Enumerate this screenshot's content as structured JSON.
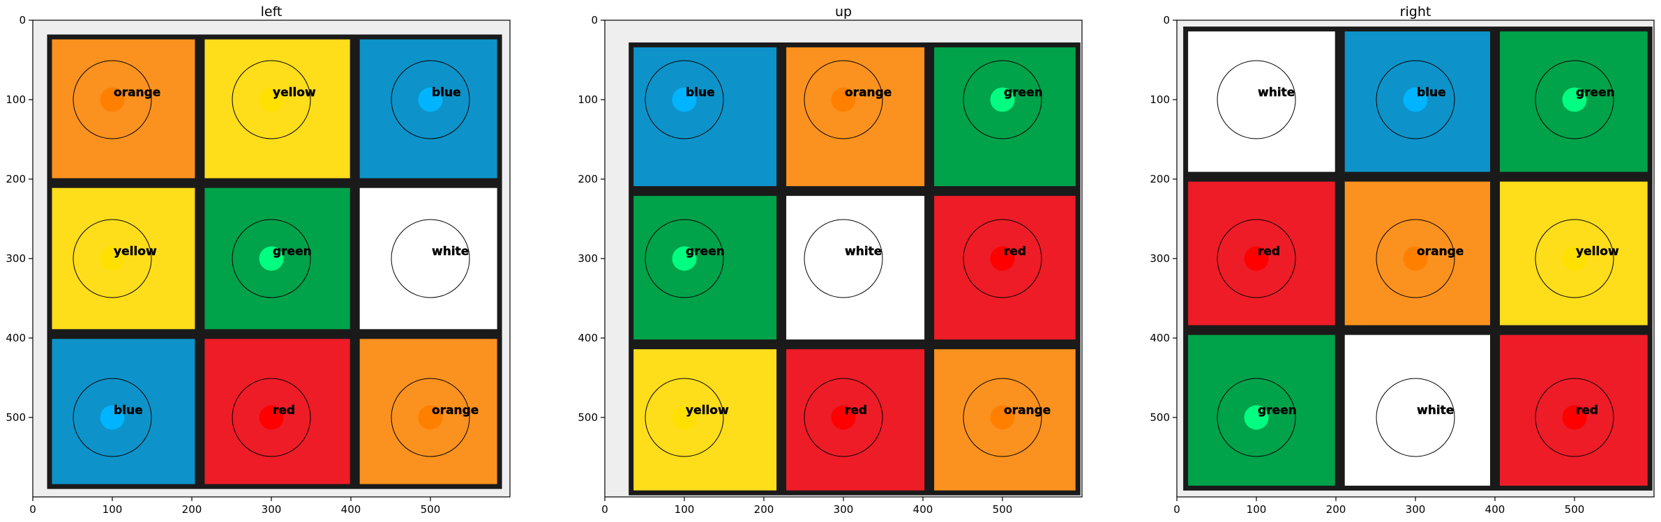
{
  "chart_data": [
    {
      "type": "heatmap",
      "title": "left",
      "xlim": [
        0,
        600
      ],
      "ylim": [
        600,
        0
      ],
      "xticks": [
        0,
        100,
        200,
        300,
        400,
        500
      ],
      "yticks": [
        0,
        100,
        200,
        300,
        400,
        500
      ],
      "grid": false,
      "cells": [
        {
          "row": 0,
          "col": 0,
          "label": "orange",
          "center": [
            100,
            100
          ]
        },
        {
          "row": 0,
          "col": 1,
          "label": "yellow",
          "center": [
            300,
            100
          ]
        },
        {
          "row": 0,
          "col": 2,
          "label": "blue",
          "center": [
            500,
            100
          ]
        },
        {
          "row": 1,
          "col": 0,
          "label": "yellow",
          "center": [
            100,
            300
          ]
        },
        {
          "row": 1,
          "col": 1,
          "label": "green",
          "center": [
            300,
            300
          ]
        },
        {
          "row": 1,
          "col": 2,
          "label": "white",
          "center": [
            500,
            300
          ]
        },
        {
          "row": 2,
          "col": 0,
          "label": "blue",
          "center": [
            100,
            500
          ]
        },
        {
          "row": 2,
          "col": 1,
          "label": "red",
          "center": [
            300,
            500
          ]
        },
        {
          "row": 2,
          "col": 2,
          "label": "orange",
          "center": [
            500,
            500
          ]
        }
      ]
    },
    {
      "type": "heatmap",
      "title": "up",
      "xlim": [
        0,
        600
      ],
      "ylim": [
        600,
        0
      ],
      "xticks": [
        0,
        100,
        200,
        300,
        400,
        500
      ],
      "yticks": [
        0,
        100,
        200,
        300,
        400,
        500
      ],
      "grid": false,
      "cells": [
        {
          "row": 0,
          "col": 0,
          "label": "blue",
          "center": [
            100,
            100
          ]
        },
        {
          "row": 0,
          "col": 1,
          "label": "orange",
          "center": [
            300,
            100
          ]
        },
        {
          "row": 0,
          "col": 2,
          "label": "green",
          "center": [
            500,
            100
          ]
        },
        {
          "row": 1,
          "col": 0,
          "label": "green",
          "center": [
            100,
            300
          ]
        },
        {
          "row": 1,
          "col": 1,
          "label": "white",
          "center": [
            300,
            300
          ]
        },
        {
          "row": 1,
          "col": 2,
          "label": "red",
          "center": [
            500,
            300
          ]
        },
        {
          "row": 2,
          "col": 0,
          "label": "yellow",
          "center": [
            100,
            500
          ]
        },
        {
          "row": 2,
          "col": 1,
          "label": "red",
          "center": [
            300,
            500
          ]
        },
        {
          "row": 2,
          "col": 2,
          "label": "orange",
          "center": [
            500,
            500
          ]
        }
      ]
    },
    {
      "type": "heatmap",
      "title": "right",
      "xlim": [
        0,
        600
      ],
      "ylim": [
        600,
        0
      ],
      "xticks": [
        0,
        100,
        200,
        300,
        400,
        500
      ],
      "yticks": [
        0,
        100,
        200,
        300,
        400,
        500
      ],
      "grid": false,
      "cells": [
        {
          "row": 0,
          "col": 0,
          "label": "white",
          "center": [
            100,
            100
          ]
        },
        {
          "row": 0,
          "col": 1,
          "label": "blue",
          "center": [
            300,
            100
          ]
        },
        {
          "row": 0,
          "col": 2,
          "label": "green",
          "center": [
            500,
            100
          ]
        },
        {
          "row": 1,
          "col": 0,
          "label": "red",
          "center": [
            100,
            300
          ]
        },
        {
          "row": 1,
          "col": 1,
          "label": "orange",
          "center": [
            300,
            300
          ]
        },
        {
          "row": 1,
          "col": 2,
          "label": "yellow",
          "center": [
            500,
            300
          ]
        },
        {
          "row": 2,
          "col": 0,
          "label": "green",
          "center": [
            100,
            500
          ]
        },
        {
          "row": 2,
          "col": 1,
          "label": "white",
          "center": [
            300,
            500
          ]
        },
        {
          "row": 2,
          "col": 2,
          "label": "red",
          "center": [
            500,
            500
          ]
        }
      ]
    }
  ],
  "palette": {
    "sticker": {
      "orange": "#FB921F",
      "yellow": "#FEDD1B",
      "blue": "#0D93C9",
      "green": "#00A24A",
      "white": "#FFFFFF",
      "red": "#ED1C27"
    },
    "marker": {
      "orange": "#FF8000",
      "yellow": "#FFE000",
      "blue": "#00B4FF",
      "green": "#00FF80",
      "white": "#FFFFFF",
      "red": "#FF0000"
    },
    "frame": "#1a1a1a",
    "background_edge": "#eeeeee"
  }
}
